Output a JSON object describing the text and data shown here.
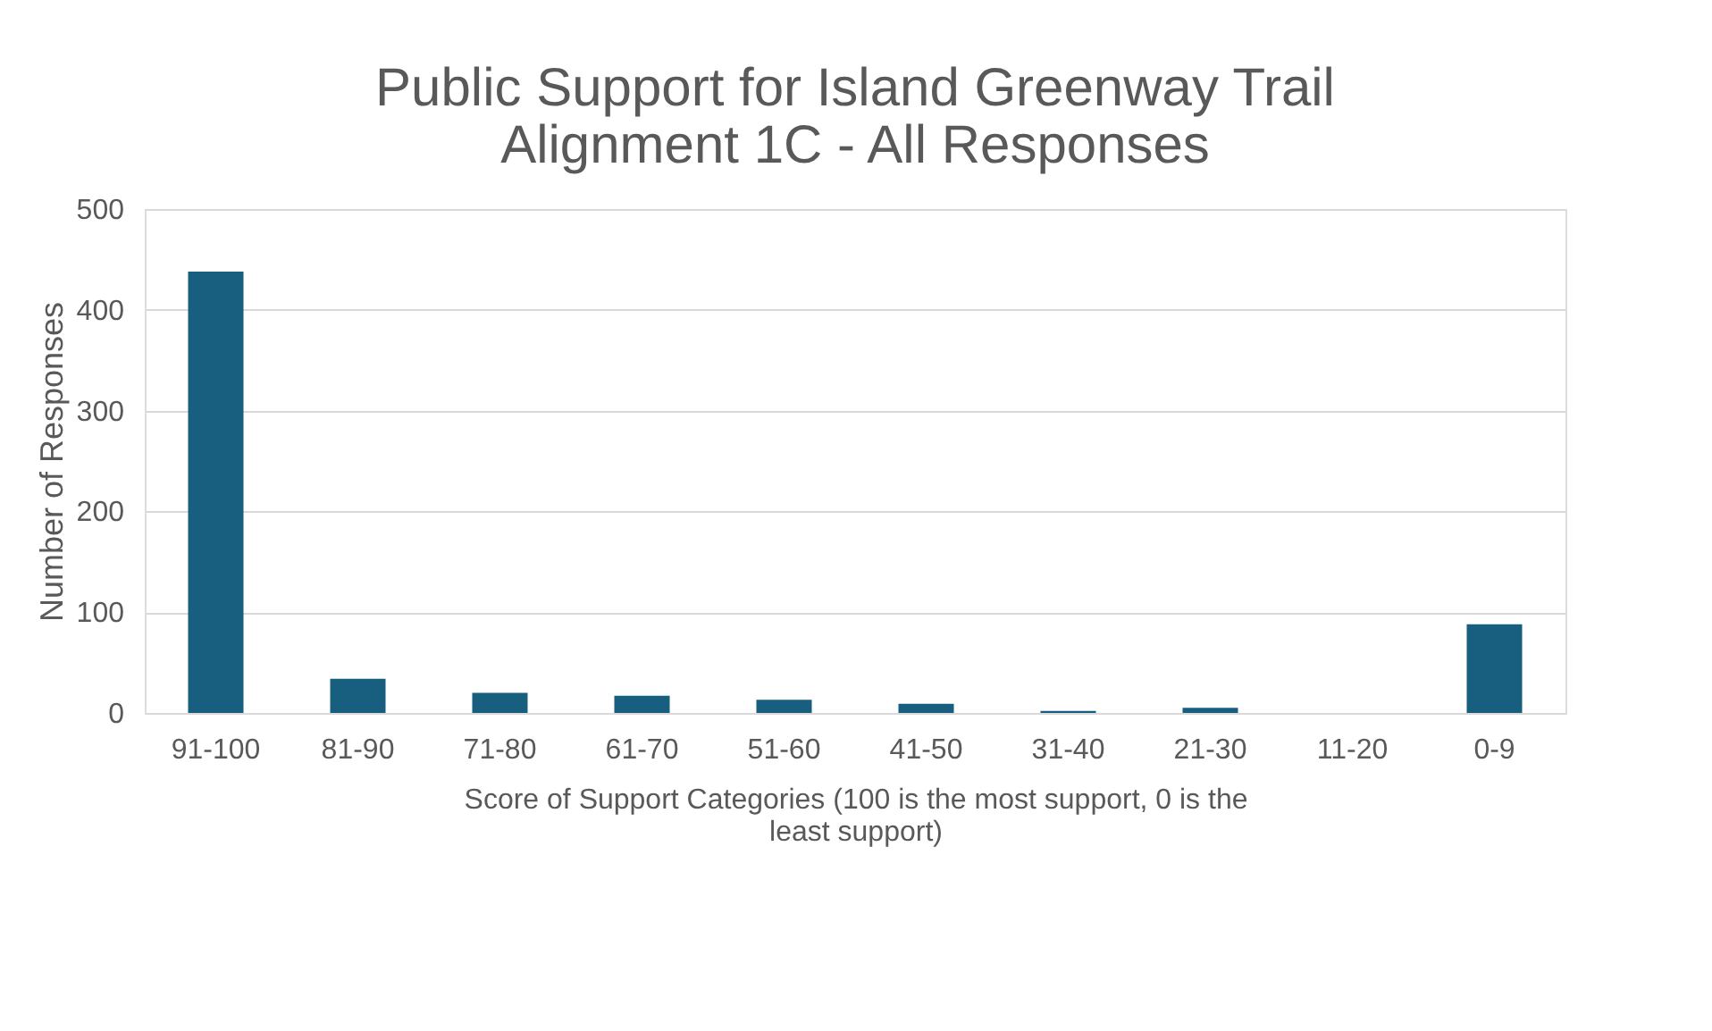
{
  "chart_data": {
    "type": "bar",
    "title": [
      "Public Support for Island Greenway Trail",
      "Alignment 1C - All Responses"
    ],
    "xlabel": [
      "Score of Support Categories (100 is the most support, 0 is the",
      "least support)"
    ],
    "ylabel": "Number of Responses",
    "categories": [
      "91-100",
      "81-90",
      "71-80",
      "61-70",
      "51-60",
      "41-50",
      "31-40",
      "21-30",
      "11-20",
      "0-9"
    ],
    "values": [
      438,
      34,
      20,
      17,
      13,
      9,
      2,
      5,
      0,
      88
    ],
    "color": "#175e7f",
    "ylim": [
      0,
      500
    ],
    "yticks": [
      0,
      100,
      200,
      300,
      400,
      500
    ],
    "grid": "y"
  }
}
